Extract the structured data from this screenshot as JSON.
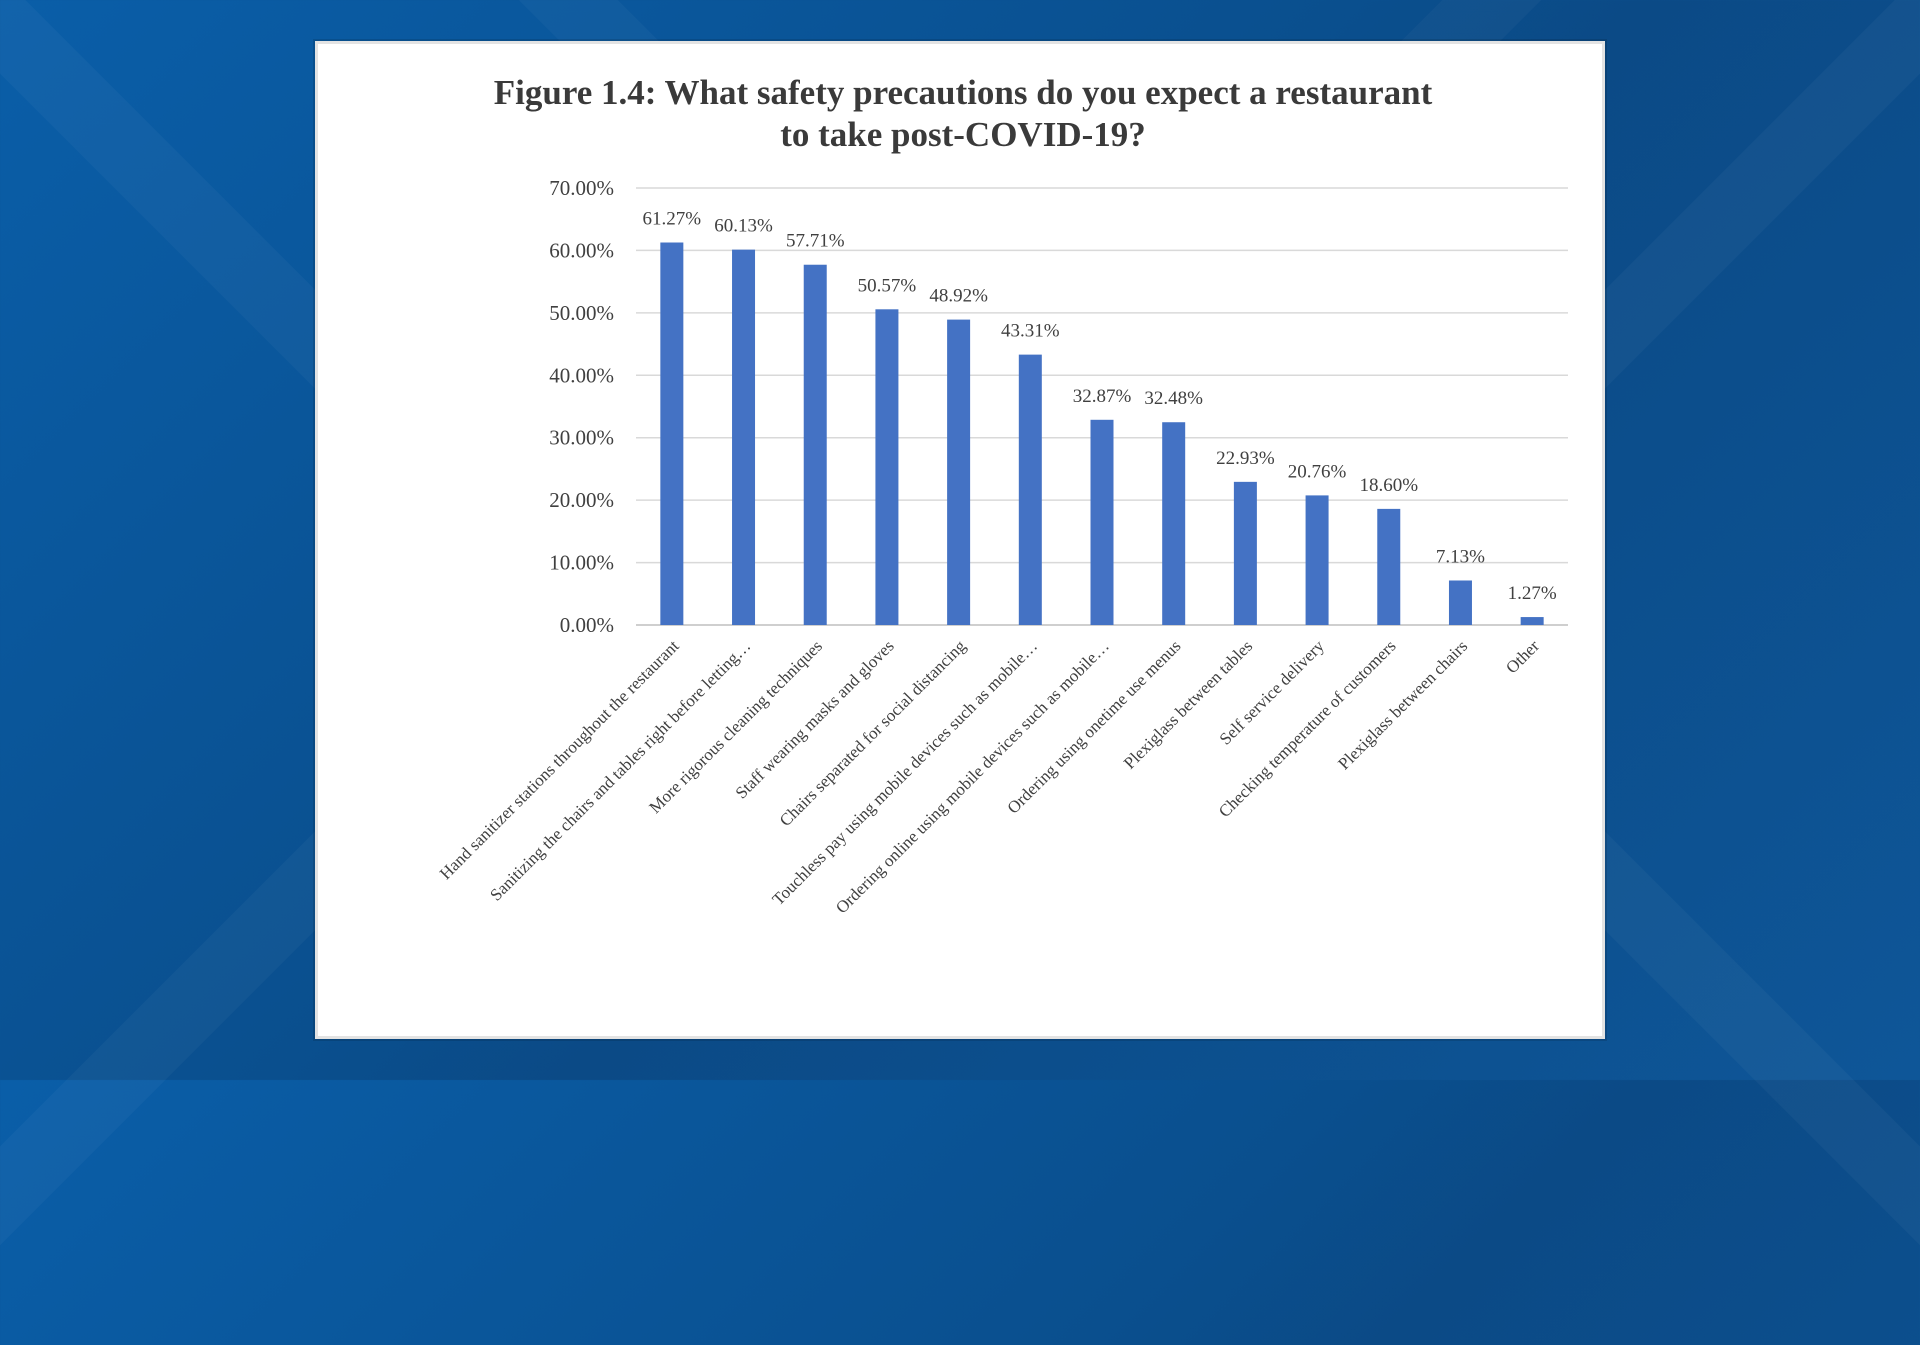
{
  "background": {
    "colors": [
      "#0a5ea8",
      "#0b4a86"
    ]
  },
  "chart_data": {
    "type": "bar",
    "title_line1": "Figure 1.4: What safety precautions do you expect a restaurant",
    "title_line2": "to take post-COVID-19?",
    "categories": [
      "Hand sanitizer stations throughout the restaurant",
      "Sanitizing the chairs and tables right before letting…",
      "More rigorous cleaning techniques",
      "Staff wearing masks and gloves",
      "Chairs separated for social distancing",
      "Touchless pay using mobile devices such as mobile…",
      "Ordering online using mobile devices such as mobile…",
      "Ordering using onetime use menus",
      "Plexiglass between tables",
      "Self service delivery",
      "Checking temperature of customers",
      "Plexiglass between chairs",
      "Other"
    ],
    "values": [
      61.27,
      60.13,
      57.71,
      50.57,
      48.92,
      43.31,
      32.87,
      32.48,
      22.93,
      20.76,
      18.6,
      7.13,
      1.27
    ],
    "value_labels": [
      "61.27%",
      "60.13%",
      "57.71%",
      "50.57%",
      "48.92%",
      "43.31%",
      "32.87%",
      "32.48%",
      "22.93%",
      "20.76%",
      "18.60%",
      "7.13%",
      "1.27%"
    ],
    "ylim": [
      0,
      70
    ],
    "yticks": [
      0,
      10,
      20,
      30,
      40,
      50,
      60,
      70
    ],
    "ytick_labels": [
      "0.00%",
      "10.00%",
      "20.00%",
      "30.00%",
      "40.00%",
      "50.00%",
      "60.00%",
      "70.00%"
    ],
    "xlabel": "",
    "ylabel": "",
    "grid": true,
    "legend": "none",
    "bar_color": "#4472c4",
    "grid_color": "#d9d9d9",
    "axis_color": "#bfbfbf"
  }
}
